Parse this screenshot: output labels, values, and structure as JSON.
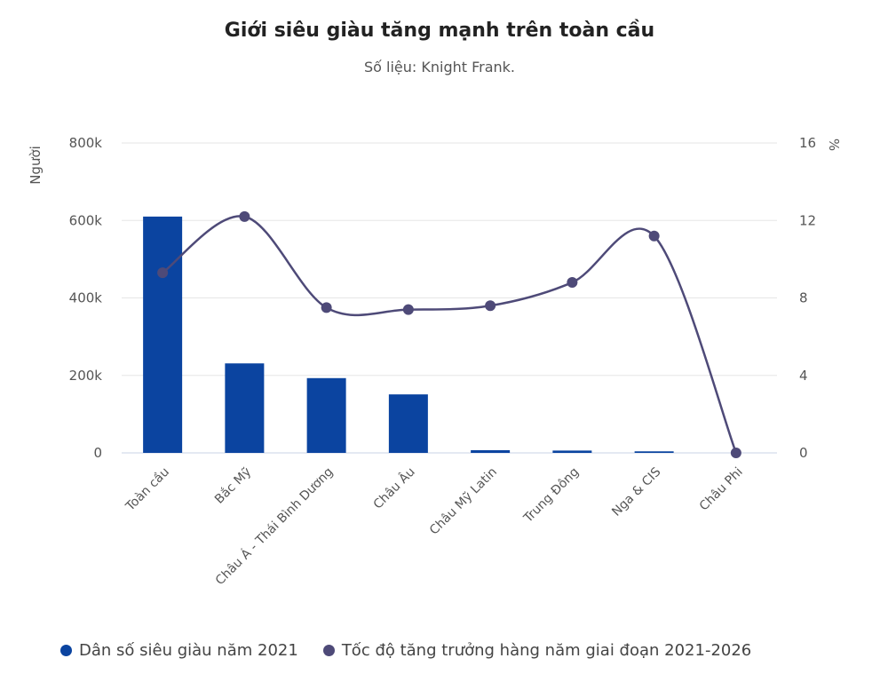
{
  "chart_data": {
    "type": "bar",
    "title": "Giới siêu giàu tăng mạnh trên toàn cầu",
    "subtitle": "Số liệu: Knight Frank.",
    "categories": [
      "Toàn cầu",
      "Bắc Mỹ",
      "Châu Á - Thái Bình Dương",
      "Châu Âu",
      "Châu Mỹ Latin",
      "Trung Đông",
      "Nga & CIS",
      "Châu Phi"
    ],
    "y_left": {
      "label": "Người",
      "range": [
        0,
        800000
      ],
      "ticks": [
        0,
        200000,
        400000,
        600000,
        800000
      ],
      "tick_labels": [
        "0",
        "200k",
        "400k",
        "600k",
        "800k"
      ]
    },
    "y_right": {
      "label": "%",
      "range": [
        0,
        16
      ],
      "ticks": [
        0,
        4,
        8,
        12,
        16
      ],
      "tick_labels": [
        "0",
        "4",
        "8",
        "12",
        "16"
      ]
    },
    "grid": true,
    "legend_position": "bottom-left",
    "series": [
      {
        "name": "Dân số siêu giàu năm 2021",
        "type": "bar",
        "axis": "left",
        "color": "#0b44a0",
        "values": [
          610000,
          231000,
          193000,
          151000,
          7000,
          6000,
          4000,
          0
        ]
      },
      {
        "name": "Tốc độ tăng trưởng hàng năm giai đoạn 2021-2026",
        "type": "line",
        "axis": "right",
        "color": "#4e4a78",
        "values": [
          9.3,
          12.2,
          7.5,
          7.4,
          7.6,
          8.8,
          11.2,
          0
        ]
      }
    ]
  }
}
